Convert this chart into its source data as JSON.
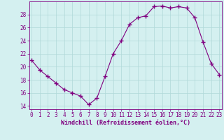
{
  "x": [
    0,
    1,
    2,
    3,
    4,
    5,
    6,
    7,
    8,
    9,
    10,
    11,
    12,
    13,
    14,
    15,
    16,
    17,
    18,
    19,
    20,
    21,
    22,
    23
  ],
  "y": [
    21.0,
    19.5,
    18.5,
    17.5,
    16.5,
    16.0,
    15.5,
    14.2,
    15.2,
    18.5,
    22.0,
    24.0,
    26.5,
    27.5,
    27.8,
    29.2,
    29.3,
    29.0,
    29.2,
    29.0,
    27.5,
    23.8,
    20.5,
    18.8
  ],
  "line_color": "#800080",
  "marker": "+",
  "marker_size": 4,
  "marker_linewidth": 1.0,
  "background_color": "#d4f0f0",
  "grid_color": "#b0d8d8",
  "axis_color": "#800080",
  "tick_color": "#800080",
  "xlabel": "Windchill (Refroidissement éolien,°C)",
  "xlabel_fontsize": 6.0,
  "ylim": [
    13.5,
    30.0
  ],
  "xlim": [
    -0.3,
    23.3
  ],
  "yticks": [
    14,
    16,
    18,
    20,
    22,
    24,
    26,
    28
  ],
  "xticks": [
    0,
    1,
    2,
    3,
    4,
    5,
    6,
    7,
    8,
    9,
    10,
    11,
    12,
    13,
    14,
    15,
    16,
    17,
    18,
    19,
    20,
    21,
    22,
    23
  ],
  "tick_fontsize": 5.5,
  "linewidth": 0.8
}
